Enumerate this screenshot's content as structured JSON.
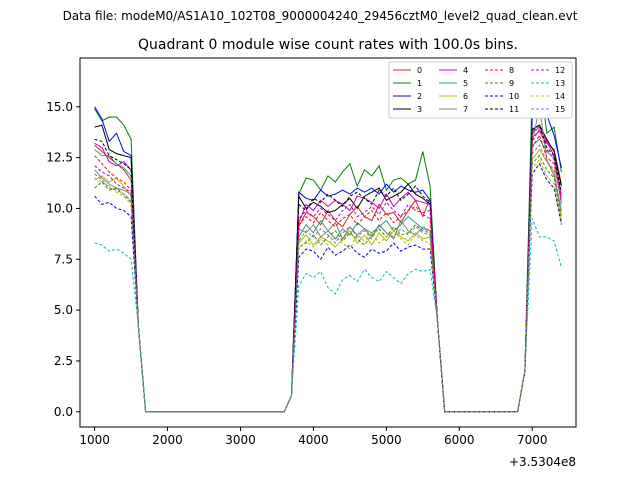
{
  "chart_data": {
    "type": "line",
    "suptitle": "Data file: modeM0/AS1A10_102T08_9000004240_29456cztM0_level2_quad_clean.evt",
    "title": "Quadrant 0 module wise count rates with 100.0s bins.",
    "xlabel": "",
    "ylabel": "",
    "x_offset_label": "+3.5304e8",
    "xlim": [
      800,
      7600
    ],
    "ylim": [
      -0.75,
      17.4
    ],
    "xticks": [
      1000,
      2000,
      3000,
      4000,
      5000,
      6000,
      7000
    ],
    "xtick_labels": [
      "1000",
      "2000",
      "3000",
      "4000",
      "5000",
      "6000",
      "7000"
    ],
    "yticks": [
      0,
      2.5,
      5,
      7.5,
      10,
      12.5,
      15
    ],
    "ytick_labels": [
      "0.0",
      "2.5",
      "5.0",
      "7.5",
      "10.0",
      "12.5",
      "15.0"
    ],
    "legend_position": "top-right",
    "segments": [
      {
        "from": 1000,
        "to": 1500
      },
      {
        "from": 3800,
        "to": 5600
      },
      {
        "from": 7000,
        "to": 7400
      }
    ],
    "series": [
      {
        "name": "0",
        "color": "#d62728",
        "dash": "solid",
        "s1": [
          13.1,
          12.8,
          12.5,
          12.2,
          11.9,
          11.4
        ],
        "s2": [
          9.1,
          9.8,
          9.6,
          9.2,
          9.9,
          9.4,
          9.1,
          9.7,
          10.1,
          9.6,
          9.4,
          10.2,
          9.7,
          9.8,
          9.3,
          9.9,
          10.4,
          9.6,
          10.5
        ],
        "s3": [
          13.5,
          13.8,
          13.2,
          12.9,
          11.2
        ]
      },
      {
        "name": "1",
        "color": "#008000",
        "dash": "solid",
        "s1": [
          14.9,
          14.3,
          14.5,
          14.5,
          14.1,
          13.4
        ],
        "s2": [
          10.7,
          11.5,
          11.4,
          10.9,
          11.6,
          11.3,
          11.8,
          12.2,
          11.1,
          11.9,
          11.6,
          12.1,
          10.9,
          11.4,
          11.5,
          11.2,
          11.4,
          12.8,
          11.1
        ],
        "s3": [
          15.9,
          16.5,
          13.7,
          14.0,
          11.8
        ]
      },
      {
        "name": "2",
        "color": "#0000ff",
        "dash": "solid",
        "s1": [
          15.0,
          14.4,
          13.3,
          13.7,
          12.8,
          12.6
        ],
        "s2": [
          10.8,
          10.5,
          10.4,
          10.9,
          10.6,
          10.7,
          10.9,
          10.7,
          11.0,
          10.8,
          11.0,
          10.7,
          11.2,
          10.8,
          11.1,
          10.9,
          10.8,
          10.9,
          10.4
        ],
        "s3": [
          14.5,
          15.2,
          14.6,
          13.6,
          12.0
        ]
      },
      {
        "name": "3",
        "color": "#000000",
        "dash": "solid",
        "s1": [
          14.0,
          14.1,
          12.9,
          12.7,
          12.6,
          12.5
        ],
        "s2": [
          10.6,
          10.0,
          10.3,
          10.1,
          9.8,
          9.9,
          10.2,
          10.5,
          10.0,
          10.6,
          10.8,
          11.0,
          10.4,
          10.6,
          10.8,
          11.2,
          10.7,
          10.5,
          10.2
        ],
        "s3": [
          13.9,
          14.1,
          13.4,
          12.8,
          11.1
        ]
      },
      {
        "name": "4",
        "color": "#c000c0",
        "dash": "solid",
        "s1": [
          13.2,
          13.0,
          12.3,
          12.1,
          12.3,
          11.9
        ],
        "s2": [
          9.3,
          10.2,
          9.9,
          10.4,
          10.1,
          10.4,
          10.2,
          9.9,
          10.6,
          10.5,
          10.3,
          10.0,
          10.7,
          10.1,
          10.5,
          10.8,
          10.4,
          10.3,
          10.2
        ],
        "s3": [
          13.7,
          14.0,
          13.3,
          12.6,
          10.6
        ]
      },
      {
        "name": "5",
        "color": "#2ca07a",
        "dash": "solid",
        "s1": [
          12.9,
          12.6,
          12.6,
          12.2,
          12.0,
          11.6
        ],
        "s2": [
          8.6,
          9.2,
          8.8,
          9.4,
          8.9,
          8.5,
          9.0,
          8.7,
          9.3,
          9.0,
          8.8,
          9.1,
          9.4,
          8.9,
          9.2,
          9.6,
          9.3,
          9.0,
          8.9
        ],
        "s3": [
          13.1,
          13.4,
          12.8,
          12.5,
          10.2
        ]
      },
      {
        "name": "6",
        "color": "#b8b800",
        "dash": "solid",
        "s1": [
          11.4,
          11.6,
          11.3,
          11.5,
          11.1,
          10.6
        ],
        "s2": [
          8.3,
          8.7,
          8.2,
          8.6,
          8.4,
          8.1,
          8.5,
          8.9,
          8.3,
          8.7,
          8.2,
          8.8,
          8.4,
          8.9,
          8.6,
          8.4,
          8.8,
          8.5,
          8.6
        ],
        "s3": [
          12.4,
          12.9,
          12.3,
          11.8,
          9.6
        ]
      },
      {
        "name": "7",
        "color": "#808080",
        "dash": "solid",
        "s1": [
          11.9,
          11.5,
          11.2,
          11.0,
          10.9,
          10.7
        ],
        "s2": [
          9.0,
          8.8,
          9.2,
          8.6,
          8.9,
          9.3,
          8.5,
          9.1,
          8.7,
          9.0,
          8.6,
          9.2,
          8.8,
          8.5,
          9.4,
          8.9,
          8.7,
          9.1,
          8.9
        ],
        "s3": [
          13.2,
          15.0,
          12.4,
          11.6,
          9.9
        ]
      },
      {
        "name": "8",
        "color": "#ff0000",
        "dash": "dashed",
        "s1": [
          12.6,
          12.2,
          11.8,
          11.5,
          11.3,
          10.9
        ],
        "s2": [
          9.2,
          9.6,
          9.3,
          9.8,
          9.4,
          9.1,
          9.5,
          9.7,
          9.2,
          9.6,
          9.9,
          9.4,
          9.8,
          9.3,
          9.6,
          9.9,
          10.1,
          9.7,
          9.5
        ],
        "s3": [
          13.0,
          13.6,
          12.5,
          12.2,
          10.4
        ]
      },
      {
        "name": "9",
        "color": "#2e8b00",
        "dash": "dashed",
        "s1": [
          11.0,
          11.3,
          10.9,
          11.0,
          10.7,
          10.3
        ],
        "s2": [
          8.1,
          8.3,
          8.7,
          8.2,
          8.6,
          8.9,
          8.4,
          8.8,
          8.5,
          8.2,
          8.7,
          9.0,
          8.6,
          9.1,
          8.7,
          8.8,
          9.2,
          8.9,
          8.8
        ],
        "s3": [
          12.2,
          12.6,
          11.9,
          11.5,
          9.4
        ]
      },
      {
        "name": "10",
        "color": "#0000cc",
        "dash": "dashed",
        "s1": [
          10.6,
          10.2,
          10.3,
          10.0,
          9.9,
          9.6
        ],
        "s2": [
          7.6,
          8.0,
          7.9,
          7.5,
          8.1,
          7.7,
          7.9,
          8.2,
          7.8,
          7.6,
          8.0,
          7.8,
          7.9,
          8.3,
          7.9,
          8.1,
          8.2,
          8.0,
          8.0
        ],
        "s3": [
          11.7,
          12.2,
          11.4,
          11.0,
          9.2
        ]
      },
      {
        "name": "11",
        "color": "#000000",
        "dash": "dashed",
        "s1": [
          13.4,
          13.3,
          12.6,
          12.4,
          12.2,
          11.9
        ],
        "s2": [
          10.2,
          9.9,
          10.5,
          10.3,
          10.7,
          10.4,
          10.1,
          10.6,
          10.8,
          10.5,
          10.2,
          10.9,
          10.6,
          11.0,
          10.4,
          10.7,
          11.1,
          10.6,
          10.3
        ],
        "s3": [
          13.8,
          14.1,
          13.0,
          12.6,
          10.8
        ]
      },
      {
        "name": "12",
        "color": "#c000c0",
        "dash": "dashed",
        "s1": [
          12.1,
          11.8,
          11.6,
          11.2,
          11.0,
          10.8
        ],
        "s2": [
          9.5,
          9.9,
          9.6,
          10.0,
          9.7,
          9.4,
          9.9,
          10.2,
          9.6,
          9.8,
          10.1,
          9.7,
          10.3,
          9.9,
          9.6,
          10.2,
          9.9,
          9.8,
          9.9
        ],
        "s3": [
          13.3,
          13.9,
          12.9,
          12.4,
          10.3
        ]
      },
      {
        "name": "13",
        "color": "#00c0c0",
        "dash": "dashed",
        "s1": [
          8.3,
          8.2,
          7.9,
          8.0,
          7.8,
          7.5
        ],
        "s2": [
          6.2,
          6.8,
          6.6,
          6.9,
          6.1,
          5.8,
          6.5,
          6.7,
          6.4,
          7.0,
          6.6,
          6.4,
          6.9,
          6.6,
          6.3,
          6.8,
          7.0,
          6.9,
          7.0
        ],
        "s3": [
          9.5,
          8.6,
          8.6,
          8.4,
          7.1
        ]
      },
      {
        "name": "14",
        "color": "#b8b800",
        "dash": "dashed",
        "s1": [
          11.5,
          11.3,
          11.1,
          10.8,
          10.6,
          10.2
        ],
        "s2": [
          8.0,
          8.4,
          8.1,
          8.5,
          8.2,
          8.6,
          8.3,
          8.0,
          8.7,
          8.4,
          8.8,
          8.3,
          8.6,
          8.9,
          8.5,
          8.2,
          8.7,
          8.4,
          8.3
        ],
        "s3": [
          12.0,
          12.4,
          11.6,
          11.2,
          9.3
        ]
      },
      {
        "name": "15",
        "color": "#708090",
        "dash": "dashed",
        "s1": [
          11.7,
          11.4,
          11.0,
          10.9,
          10.7,
          10.4
        ],
        "s2": [
          8.4,
          8.9,
          8.6,
          9.0,
          8.7,
          8.3,
          8.8,
          9.1,
          8.6,
          8.9,
          8.5,
          9.2,
          8.8,
          8.6,
          9.0,
          8.7,
          9.1,
          8.8,
          8.7
        ],
        "s3": [
          12.7,
          13.1,
          12.3,
          11.9,
          9.7
        ]
      }
    ]
  }
}
